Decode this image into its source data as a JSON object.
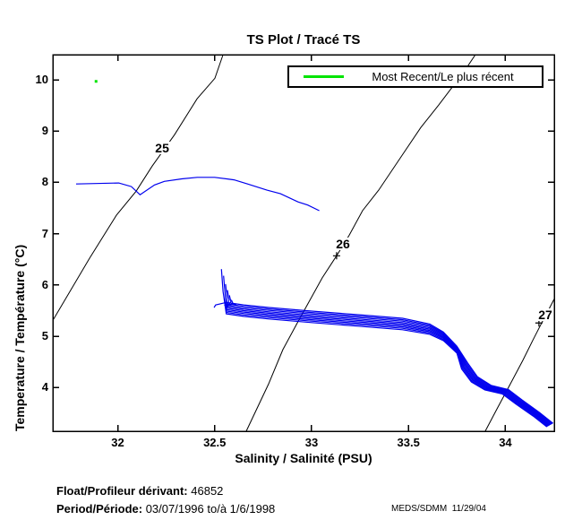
{
  "legend": {
    "label": "Most Recent/Le plus récent"
  },
  "footer": {
    "float_label": "Float/Profileur dérivant:",
    "float_value": "46852",
    "period_label": "Period/Période:",
    "period_value": "03/07/1996 to/à 1/6/1998",
    "stamp": "MEDS/SDMM  11/29/04"
  },
  "chart_data": {
    "type": "line",
    "title": "TS Plot / Tracé TS",
    "xlabel": "Salinity / Salinité (PSU)",
    "ylabel": "Temperature / Température (°C)",
    "xlim": [
      31.665,
      34.252
    ],
    "ylim": [
      3.15,
      10.49
    ],
    "xticks": [
      32,
      32.5,
      33,
      33.5,
      34
    ],
    "xtick_labels": [
      "32",
      "32.5",
      "33",
      "33.5",
      "34"
    ],
    "yticks": [
      4,
      5,
      6,
      7,
      8,
      9,
      10
    ],
    "grid": false,
    "legend_position": "top-right",
    "colors": {
      "profile": "#0000ee",
      "contour": "#000000",
      "most_recent": "#00e400"
    },
    "most_recent_point": [
      31.888,
      9.97
    ],
    "isopycnals": [
      {
        "label": "25",
        "label_pos": [
          32.229,
          8.67
        ],
        "plus_pos": null,
        "points": [
          [
            31.665,
            5.31
          ],
          [
            31.854,
            6.52
          ],
          [
            31.993,
            7.36
          ],
          [
            32.095,
            7.83
          ],
          [
            32.178,
            8.32
          ],
          [
            32.293,
            8.93
          ],
          [
            32.409,
            9.63
          ],
          [
            32.501,
            10.03
          ],
          [
            32.543,
            10.49
          ]
        ]
      },
      {
        "label": "26",
        "label_pos": [
          33.162,
          6.8
        ],
        "plus_pos": [
          33.129,
          6.57
        ],
        "points": [
          [
            32.663,
            3.15
          ],
          [
            32.778,
            4.07
          ],
          [
            32.852,
            4.74
          ],
          [
            32.926,
            5.26
          ],
          [
            33.055,
            6.14
          ],
          [
            33.129,
            6.57
          ],
          [
            33.194,
            6.97
          ],
          [
            33.263,
            7.45
          ],
          [
            33.346,
            7.85
          ],
          [
            33.471,
            8.55
          ],
          [
            33.563,
            9.07
          ],
          [
            33.656,
            9.51
          ],
          [
            33.716,
            9.81
          ],
          [
            33.776,
            10.1
          ],
          [
            33.845,
            10.49
          ]
        ]
      },
      {
        "label": "27",
        "label_pos": [
          34.206,
          5.42
        ],
        "plus_pos": [
          34.173,
          5.26
        ],
        "points": [
          [
            33.896,
            3.15
          ],
          [
            33.956,
            3.58
          ],
          [
            34.025,
            4.07
          ],
          [
            34.09,
            4.53
          ],
          [
            34.141,
            4.92
          ],
          [
            34.187,
            5.26
          ],
          [
            34.219,
            5.49
          ],
          [
            34.252,
            5.73
          ]
        ]
      }
    ],
    "upper_profile": [
      [
        31.785,
        7.97
      ],
      [
        32.005,
        7.99
      ],
      [
        32.07,
        7.92
      ],
      [
        32.115,
        7.76
      ],
      [
        32.19,
        7.95
      ],
      [
        32.24,
        8.02
      ],
      [
        32.33,
        8.07
      ],
      [
        32.41,
        8.1
      ],
      [
        32.5,
        8.1
      ],
      [
        32.6,
        8.05
      ],
      [
        32.67,
        7.97
      ],
      [
        32.77,
        7.85
      ],
      [
        32.84,
        7.78
      ],
      [
        32.93,
        7.62
      ],
      [
        32.98,
        7.56
      ],
      [
        33.04,
        7.45
      ]
    ],
    "bundle": {
      "count": 9,
      "jitter": 0.028,
      "base": [
        [
          32.56,
          5.55
        ],
        [
          32.65,
          5.5
        ],
        [
          32.78,
          5.45
        ],
        [
          33.0,
          5.38
        ],
        [
          33.24,
          5.31
        ],
        [
          33.47,
          5.24
        ],
        [
          33.61,
          5.14
        ],
        [
          33.68,
          5.0
        ],
        [
          33.75,
          4.74
        ],
        [
          33.79,
          4.42
        ],
        [
          33.84,
          4.16
        ],
        [
          33.91,
          4.0
        ],
        [
          34.0,
          3.92
        ],
        [
          34.07,
          3.72
        ],
        [
          34.16,
          3.48
        ],
        [
          34.23,
          3.27
        ]
      ],
      "weights": [
        1,
        1,
        1,
        1,
        1,
        1,
        0.9,
        0.75,
        0.6,
        0.5,
        0.45,
        0.4,
        0.38,
        0.35,
        0.32,
        0.3
      ],
      "hooks": [
        [
          32.535,
          6.31
        ],
        [
          32.546,
          6.18
        ],
        [
          32.556,
          6.02
        ],
        [
          32.566,
          5.9
        ],
        [
          32.576,
          5.8
        ],
        [
          32.586,
          5.71
        ],
        [
          32.596,
          5.64
        ],
        [
          32.55,
          5.6
        ],
        [
          32.497,
          5.56
        ]
      ]
    }
  }
}
